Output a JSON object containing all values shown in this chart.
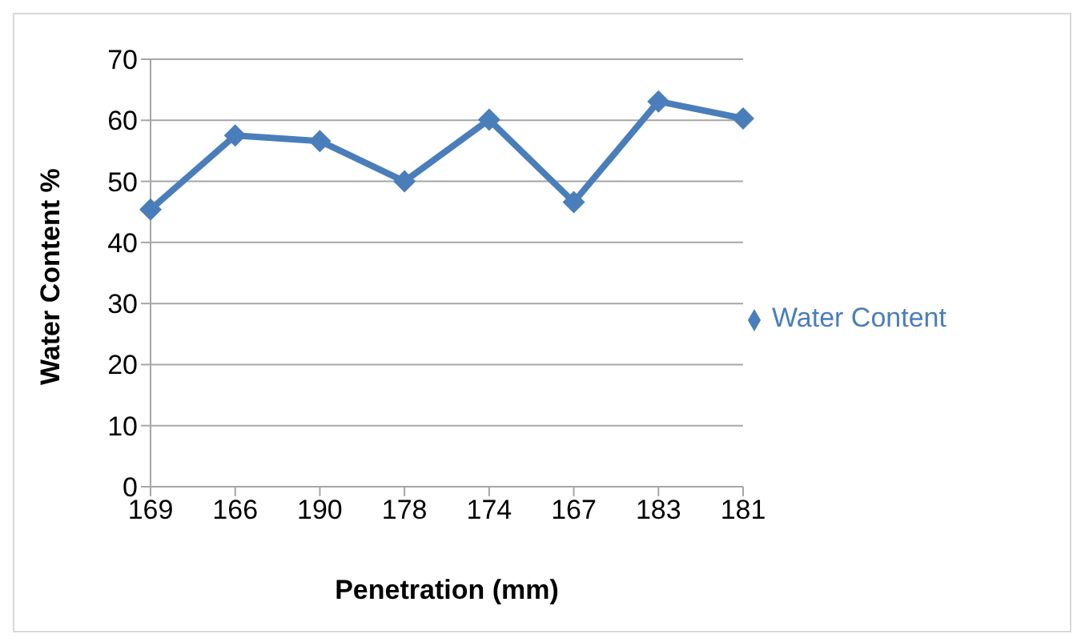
{
  "chart_data": {
    "type": "line",
    "xlabel": "Penetration (mm)",
    "ylabel": "Water Content %",
    "categories": [
      "169",
      "166",
      "190",
      "178",
      "174",
      "167",
      "183",
      "181"
    ],
    "series": [
      {
        "name": "Water Content",
        "color": "#4a7ebb",
        "values": [
          45.4,
          57.5,
          56.6,
          50,
          60.1,
          46.6,
          63.1,
          60.3
        ]
      }
    ],
    "ylim": [
      0,
      70
    ],
    "yticks": [
      0,
      10,
      20,
      30,
      40,
      50,
      60,
      70
    ],
    "grid": "y",
    "legend": "right",
    "marker": "diamond"
  }
}
